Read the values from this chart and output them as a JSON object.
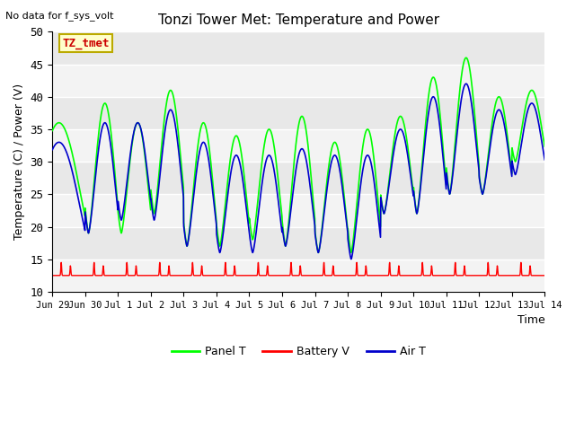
{
  "title": "Tonzi Tower Met: Temperature and Power",
  "xlabel": "Time",
  "ylabel": "Temperature (C) / Power (V)",
  "ylim": [
    10,
    50
  ],
  "xlim": [
    0,
    15
  ],
  "no_data_text": "No data for f_sys_volt",
  "annotation_text": "TZ_tmet",
  "annotation_color": "#cc0000",
  "annotation_bg": "#ffffcc",
  "annotation_edge": "#bbaa00",
  "panel_color": "#00ff00",
  "battery_color": "#ff0000",
  "air_color": "#0000cc",
  "legend_labels": [
    "Panel T",
    "Battery V",
    "Air T"
  ],
  "xtick_labels": [
    "Jun 29",
    "Jun 30",
    "Jul 1",
    "Jul 2",
    "Jul 3",
    "Jul 4",
    "Jul 5",
    "Jul 6",
    "Jul 7",
    "Jul 8",
    "Jul 9",
    "Jul 10",
    "Jul 11",
    "Jul 12",
    "Jul 13",
    "Jul 14"
  ],
  "ytick_vals": [
    10,
    15,
    20,
    25,
    30,
    35,
    40,
    45,
    50
  ],
  "bg_color": "#e8e8e8",
  "fig_color": "#f5f5f5",
  "n_days": 15,
  "pts_per_day": 144
}
